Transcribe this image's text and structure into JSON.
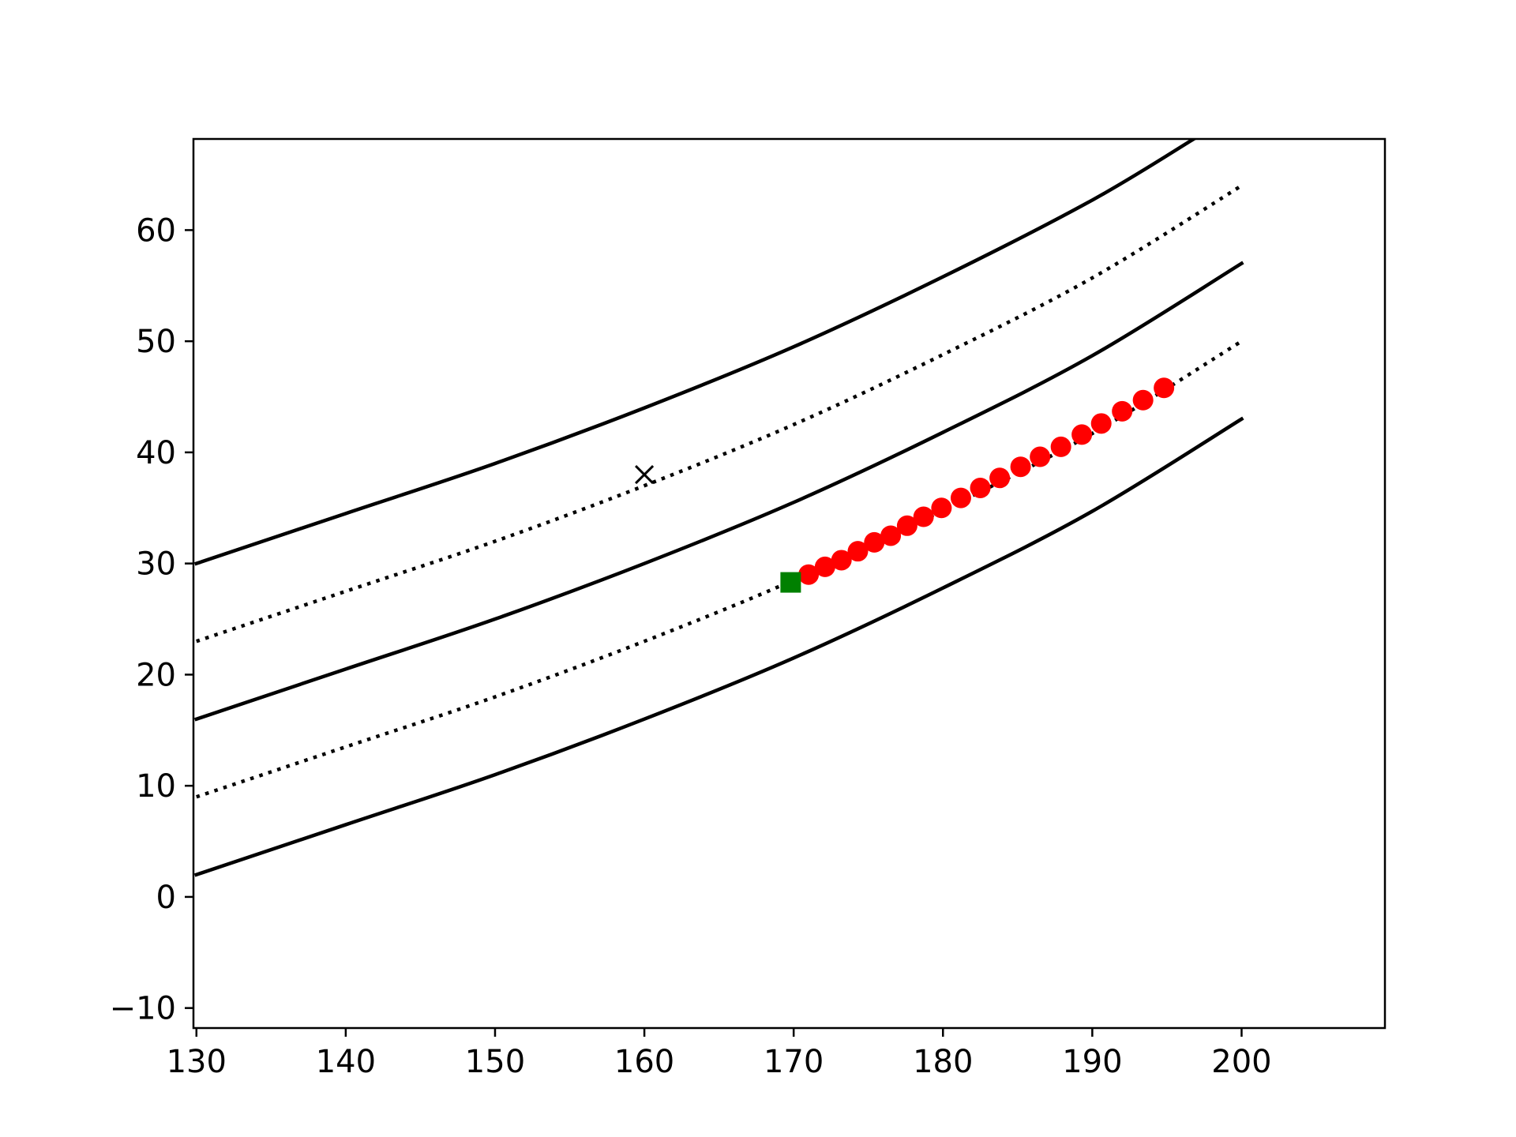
{
  "chart_data": {
    "type": "line",
    "title": "",
    "xlabel": "",
    "ylabel": "",
    "xlim": [
      129.8,
      209.6
    ],
    "ylim": [
      -11.8,
      68.2
    ],
    "x_ticks": [
      130,
      140,
      150,
      160,
      170,
      180,
      190,
      200
    ],
    "y_ticks": [
      -10,
      0,
      10,
      20,
      30,
      40,
      50,
      60
    ],
    "x_tick_labels": [
      "130",
      "140",
      "150",
      "160",
      "170",
      "180",
      "190",
      "200"
    ],
    "y_tick_labels": [
      "−10",
      "0",
      "10",
      "20",
      "30",
      "40",
      "50",
      "60"
    ],
    "grid": false,
    "series": [
      {
        "style": "solid",
        "color": "#000000",
        "x": [
          130,
          140,
          150,
          160,
          170,
          180,
          190,
          196.8
        ],
        "y": [
          30.0,
          34.5,
          39.0,
          44.0,
          49.5,
          55.8,
          62.7,
          68.2
        ]
      },
      {
        "style": "dotted",
        "color": "#000000",
        "x": [
          130,
          140,
          150,
          160,
          170,
          180,
          190,
          200
        ],
        "y": [
          23.0,
          27.5,
          32.0,
          37.0,
          42.5,
          48.8,
          55.7,
          64.0
        ]
      },
      {
        "style": "solid",
        "color": "#000000",
        "x": [
          130,
          140,
          150,
          160,
          170,
          180,
          190,
          200
        ],
        "y": [
          16.0,
          20.5,
          25.0,
          30.0,
          35.5,
          41.8,
          48.7,
          57.0
        ]
      },
      {
        "style": "dotted",
        "color": "#000000",
        "x": [
          130,
          140,
          150,
          160,
          170,
          180,
          190,
          200
        ],
        "y": [
          9.0,
          13.5,
          18.0,
          23.0,
          28.5,
          34.8,
          41.7,
          50.0
        ]
      },
      {
        "style": "solid",
        "color": "#000000",
        "x": [
          130,
          140,
          150,
          160,
          170,
          180,
          190,
          200
        ],
        "y": [
          2.0,
          6.5,
          11.0,
          16.0,
          21.5,
          27.8,
          34.7,
          43.0
        ]
      }
    ],
    "points": [
      {
        "marker": "circle",
        "color": "#ff0000",
        "x": [
          171.0,
          172.1,
          173.2,
          174.3,
          175.4,
          176.5,
          177.6,
          178.7,
          179.9,
          181.2,
          182.5,
          183.8,
          185.2,
          186.5,
          187.9,
          189.3,
          190.6,
          192.0,
          193.4,
          194.8
        ],
        "y": [
          29.0,
          29.7,
          30.3,
          31.1,
          31.9,
          32.5,
          33.4,
          34.2,
          35.0,
          35.9,
          36.8,
          37.7,
          38.7,
          39.6,
          40.5,
          41.6,
          42.6,
          43.7,
          44.7,
          45.8
        ]
      },
      {
        "marker": "square",
        "color": "#008000",
        "x": [
          169.8
        ],
        "y": [
          28.3
        ]
      },
      {
        "marker": "x",
        "color": "#000000",
        "x": [
          160.0
        ],
        "y": [
          38.0
        ]
      }
    ]
  }
}
